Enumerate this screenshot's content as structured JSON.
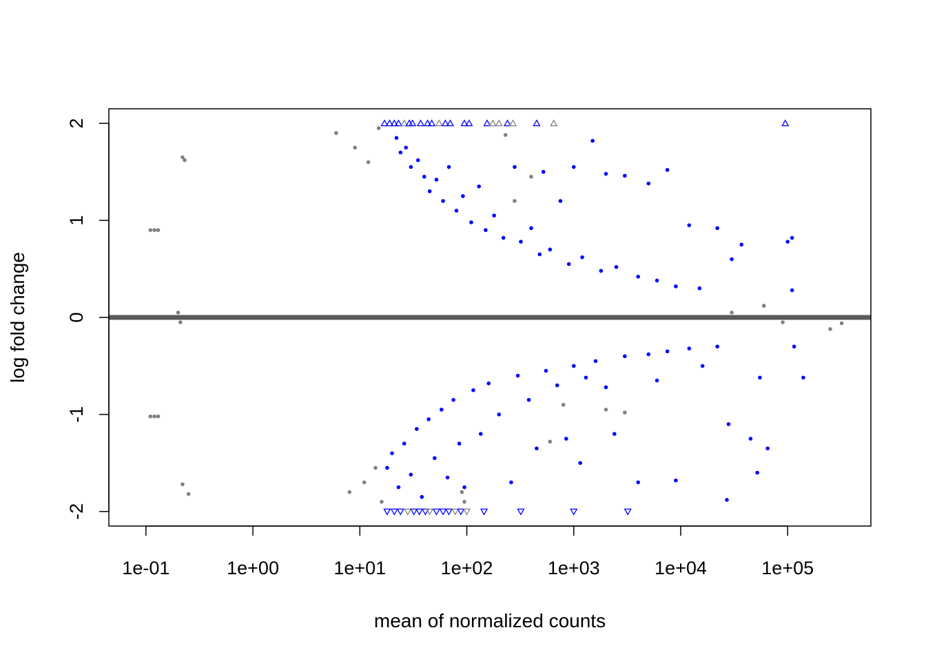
{
  "chart_data": {
    "type": "scatter",
    "title": "",
    "xlabel": "mean of normalized counts",
    "ylabel": "log fold change",
    "x_scale": "log10",
    "xlim": [
      0.045,
      600000
    ],
    "ylim": [
      -2.15,
      2.15
    ],
    "x_ticks": [
      {
        "value": 0.1,
        "label": "1e-01"
      },
      {
        "value": 1,
        "label": "1e+00"
      },
      {
        "value": 10,
        "label": "1e+01"
      },
      {
        "value": 100,
        "label": "1e+02"
      },
      {
        "value": 1000,
        "label": "1e+03"
      },
      {
        "value": 10000,
        "label": "1e+04"
      },
      {
        "value": 100000,
        "label": "1e+05"
      }
    ],
    "y_ticks": [
      {
        "value": -2,
        "label": "-2"
      },
      {
        "value": -1,
        "label": "-1"
      },
      {
        "value": 0,
        "label": "0"
      },
      {
        "value": 1,
        "label": "1"
      },
      {
        "value": 2,
        "label": "2"
      }
    ],
    "reference_line": {
      "y": 0,
      "color": "#5a5a5a"
    },
    "grid": false,
    "legend": "none",
    "colors": {
      "significant": "#0000ff",
      "not_significant": "#808080"
    },
    "clipped_limit": 2,
    "clipped_points": [
      {
        "x": 17,
        "direction": "up",
        "significant": true
      },
      {
        "x": 19,
        "direction": "up",
        "significant": true
      },
      {
        "x": 21,
        "direction": "up",
        "significant": true
      },
      {
        "x": 23,
        "direction": "up",
        "significant": true
      },
      {
        "x": 26,
        "direction": "up",
        "significant": false
      },
      {
        "x": 29,
        "direction": "up",
        "significant": true
      },
      {
        "x": 31,
        "direction": "up",
        "significant": true
      },
      {
        "x": 37,
        "direction": "up",
        "significant": true
      },
      {
        "x": 43,
        "direction": "up",
        "significant": true
      },
      {
        "x": 47,
        "direction": "up",
        "significant": true
      },
      {
        "x": 55,
        "direction": "up",
        "significant": false
      },
      {
        "x": 63,
        "direction": "up",
        "significant": true
      },
      {
        "x": 70,
        "direction": "up",
        "significant": true
      },
      {
        "x": 95,
        "direction": "up",
        "significant": true
      },
      {
        "x": 105,
        "direction": "up",
        "significant": true
      },
      {
        "x": 155,
        "direction": "up",
        "significant": true
      },
      {
        "x": 175,
        "direction": "up",
        "significant": false
      },
      {
        "x": 200,
        "direction": "up",
        "significant": false
      },
      {
        "x": 240,
        "direction": "up",
        "significant": true
      },
      {
        "x": 270,
        "direction": "up",
        "significant": false
      },
      {
        "x": 450,
        "direction": "up",
        "significant": true
      },
      {
        "x": 650,
        "direction": "up",
        "significant": false
      },
      {
        "x": 95000,
        "direction": "up",
        "significant": true
      },
      {
        "x": 18,
        "direction": "down",
        "significant": true
      },
      {
        "x": 21,
        "direction": "down",
        "significant": true
      },
      {
        "x": 24,
        "direction": "down",
        "significant": true
      },
      {
        "x": 28,
        "direction": "down",
        "significant": false
      },
      {
        "x": 32,
        "direction": "down",
        "significant": true
      },
      {
        "x": 36,
        "direction": "down",
        "significant": true
      },
      {
        "x": 41,
        "direction": "down",
        "significant": true
      },
      {
        "x": 45,
        "direction": "down",
        "significant": false
      },
      {
        "x": 52,
        "direction": "down",
        "significant": true
      },
      {
        "x": 60,
        "direction": "down",
        "significant": true
      },
      {
        "x": 68,
        "direction": "down",
        "significant": true
      },
      {
        "x": 78,
        "direction": "down",
        "significant": false
      },
      {
        "x": 88,
        "direction": "down",
        "significant": true
      },
      {
        "x": 100,
        "direction": "down",
        "significant": false
      },
      {
        "x": 145,
        "direction": "down",
        "significant": true
      },
      {
        "x": 320,
        "direction": "down",
        "significant": true
      },
      {
        "x": 1000,
        "direction": "down",
        "significant": true
      },
      {
        "x": 3200,
        "direction": "down",
        "significant": true
      }
    ],
    "series": [
      {
        "color": "#0000ff",
        "points": [
          {
            "x": 22,
            "y": 1.85
          },
          {
            "x": 24,
            "y": 1.7
          },
          {
            "x": 27,
            "y": 1.75
          },
          {
            "x": 30,
            "y": 1.55
          },
          {
            "x": 35,
            "y": 1.62
          },
          {
            "x": 40,
            "y": 1.45
          },
          {
            "x": 45,
            "y": 1.3
          },
          {
            "x": 52,
            "y": 1.42
          },
          {
            "x": 60,
            "y": 1.2
          },
          {
            "x": 68,
            "y": 1.55
          },
          {
            "x": 80,
            "y": 1.1
          },
          {
            "x": 92,
            "y": 1.25
          },
          {
            "x": 110,
            "y": 0.98
          },
          {
            "x": 130,
            "y": 1.35
          },
          {
            "x": 150,
            "y": 0.9
          },
          {
            "x": 180,
            "y": 1.05
          },
          {
            "x": 220,
            "y": 0.82
          },
          {
            "x": 280,
            "y": 1.55
          },
          {
            "x": 320,
            "y": 0.78
          },
          {
            "x": 400,
            "y": 0.92
          },
          {
            "x": 480,
            "y": 0.65
          },
          {
            "x": 520,
            "y": 1.5
          },
          {
            "x": 600,
            "y": 0.7
          },
          {
            "x": 750,
            "y": 1.2
          },
          {
            "x": 900,
            "y": 0.55
          },
          {
            "x": 1000,
            "y": 1.55
          },
          {
            "x": 1200,
            "y": 0.62
          },
          {
            "x": 1500,
            "y": 1.82
          },
          {
            "x": 1800,
            "y": 0.48
          },
          {
            "x": 2000,
            "y": 1.48
          },
          {
            "x": 2500,
            "y": 0.52
          },
          {
            "x": 3000,
            "y": 1.46
          },
          {
            "x": 4000,
            "y": 0.42
          },
          {
            "x": 5000,
            "y": 1.38
          },
          {
            "x": 6000,
            "y": 0.38
          },
          {
            "x": 7500,
            "y": 1.52
          },
          {
            "x": 9000,
            "y": 0.32
          },
          {
            "x": 12000,
            "y": 0.95
          },
          {
            "x": 15000,
            "y": 0.3
          },
          {
            "x": 22000,
            "y": 0.92
          },
          {
            "x": 30000,
            "y": 0.6
          },
          {
            "x": 37000,
            "y": 0.75
          },
          {
            "x": 100000,
            "y": 0.78
          },
          {
            "x": 110000,
            "y": 0.82
          },
          {
            "x": 110000,
            "y": 0.28
          },
          {
            "x": 18,
            "y": -1.55
          },
          {
            "x": 20,
            "y": -1.4
          },
          {
            "x": 23,
            "y": -1.75
          },
          {
            "x": 26,
            "y": -1.3
          },
          {
            "x": 30,
            "y": -1.62
          },
          {
            "x": 34,
            "y": -1.15
          },
          {
            "x": 38,
            "y": -1.85
          },
          {
            "x": 44,
            "y": -1.05
          },
          {
            "x": 50,
            "y": -1.45
          },
          {
            "x": 58,
            "y": -0.95
          },
          {
            "x": 66,
            "y": -1.65
          },
          {
            "x": 75,
            "y": -0.85
          },
          {
            "x": 85,
            "y": -1.3
          },
          {
            "x": 95,
            "y": -1.75
          },
          {
            "x": 115,
            "y": -0.75
          },
          {
            "x": 135,
            "y": -1.2
          },
          {
            "x": 160,
            "y": -0.68
          },
          {
            "x": 200,
            "y": -1.0
          },
          {
            "x": 260,
            "y": -1.7
          },
          {
            "x": 300,
            "y": -0.6
          },
          {
            "x": 380,
            "y": -0.85
          },
          {
            "x": 450,
            "y": -1.35
          },
          {
            "x": 550,
            "y": -0.55
          },
          {
            "x": 700,
            "y": -0.7
          },
          {
            "x": 850,
            "y": -1.25
          },
          {
            "x": 1000,
            "y": -0.5
          },
          {
            "x": 1150,
            "y": -1.5
          },
          {
            "x": 1300,
            "y": -0.62
          },
          {
            "x": 1600,
            "y": -0.45
          },
          {
            "x": 2000,
            "y": -0.72
          },
          {
            "x": 2400,
            "y": -1.2
          },
          {
            "x": 3000,
            "y": -0.4
          },
          {
            "x": 4000,
            "y": -1.7
          },
          {
            "x": 5000,
            "y": -0.38
          },
          {
            "x": 6000,
            "y": -0.65
          },
          {
            "x": 7500,
            "y": -0.35
          },
          {
            "x": 9000,
            "y": -1.68
          },
          {
            "x": 12000,
            "y": -0.32
          },
          {
            "x": 16000,
            "y": -0.5
          },
          {
            "x": 22000,
            "y": -0.3
          },
          {
            "x": 27000,
            "y": -1.88
          },
          {
            "x": 28000,
            "y": -1.1
          },
          {
            "x": 45000,
            "y": -1.25
          },
          {
            "x": 52000,
            "y": -1.6
          },
          {
            "x": 55000,
            "y": -0.62
          },
          {
            "x": 65000,
            "y": -1.35
          },
          {
            "x": 115000,
            "y": -0.3
          },
          {
            "x": 140000,
            "y": -0.62
          }
        ]
      },
      {
        "color": "#808080",
        "points": [
          {
            "x": 0.11,
            "y": 0.9
          },
          {
            "x": 0.12,
            "y": 0.9
          },
          {
            "x": 0.13,
            "y": 0.9
          },
          {
            "x": 0.11,
            "y": -1.02
          },
          {
            "x": 0.12,
            "y": -1.02
          },
          {
            "x": 0.13,
            "y": -1.02
          },
          {
            "x": 0.22,
            "y": 1.65
          },
          {
            "x": 0.23,
            "y": 1.62
          },
          {
            "x": 0.22,
            "y": -1.72
          },
          {
            "x": 0.25,
            "y": -1.82
          },
          {
            "x": 0.2,
            "y": 0.05
          },
          {
            "x": 0.21,
            "y": -0.05
          },
          {
            "x": 6,
            "y": 1.9
          },
          {
            "x": 9,
            "y": 1.75
          },
          {
            "x": 12,
            "y": 1.6
          },
          {
            "x": 15,
            "y": 1.95
          },
          {
            "x": 8,
            "y": -1.8
          },
          {
            "x": 11,
            "y": -1.7
          },
          {
            "x": 14,
            "y": -1.55
          },
          {
            "x": 16,
            "y": -1.9
          },
          {
            "x": 90,
            "y": -1.8
          },
          {
            "x": 95,
            "y": -1.9
          },
          {
            "x": 230,
            "y": 1.88
          },
          {
            "x": 280,
            "y": 1.2
          },
          {
            "x": 400,
            "y": 1.45
          },
          {
            "x": 600,
            "y": -1.28
          },
          {
            "x": 800,
            "y": -0.9
          },
          {
            "x": 2000,
            "y": -0.95
          },
          {
            "x": 3000,
            "y": -0.98
          },
          {
            "x": 30000,
            "y": 0.05
          },
          {
            "x": 60000,
            "y": 0.12
          },
          {
            "x": 90000,
            "y": -0.05
          },
          {
            "x": 250000,
            "y": -0.12
          },
          {
            "x": 320000,
            "y": -0.06
          }
        ]
      }
    ]
  }
}
